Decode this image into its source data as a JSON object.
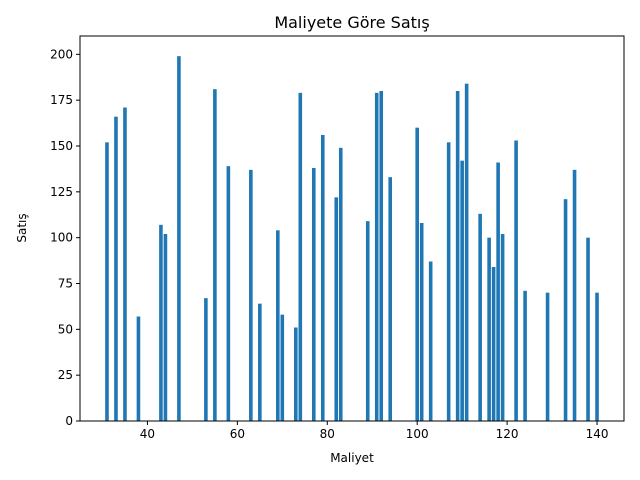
{
  "chart_data": {
    "type": "bar",
    "title": "Maliyete Göre Satış",
    "xlabel": "Maliyet",
    "ylabel": "Satış",
    "xlim": [
      25,
      146
    ],
    "ylim": [
      0,
      210
    ],
    "xticks": [
      40,
      60,
      80,
      100,
      120,
      140
    ],
    "yticks": [
      0,
      25,
      50,
      75,
      100,
      125,
      150,
      175,
      200
    ],
    "bar_color": "#1f77b4",
    "bar_width": 0.8,
    "grid": false,
    "x": [
      31,
      33,
      35,
      38,
      43,
      44,
      47,
      53,
      55,
      58,
      63,
      65,
      69,
      70,
      73,
      74,
      77,
      79,
      82,
      83,
      89,
      91,
      92,
      94,
      100,
      101,
      103,
      107,
      109,
      110,
      111,
      114,
      116,
      117,
      118,
      119,
      122,
      124,
      129,
      133,
      135,
      138,
      140
    ],
    "values": [
      152,
      166,
      171,
      57,
      107,
      102,
      199,
      67,
      181,
      139,
      137,
      64,
      104,
      58,
      51,
      179,
      138,
      156,
      122,
      149,
      109,
      179,
      180,
      133,
      160,
      108,
      87,
      152,
      180,
      142,
      184,
      113,
      100,
      84,
      141,
      102,
      153,
      71,
      70,
      121,
      137,
      100,
      70
    ]
  }
}
